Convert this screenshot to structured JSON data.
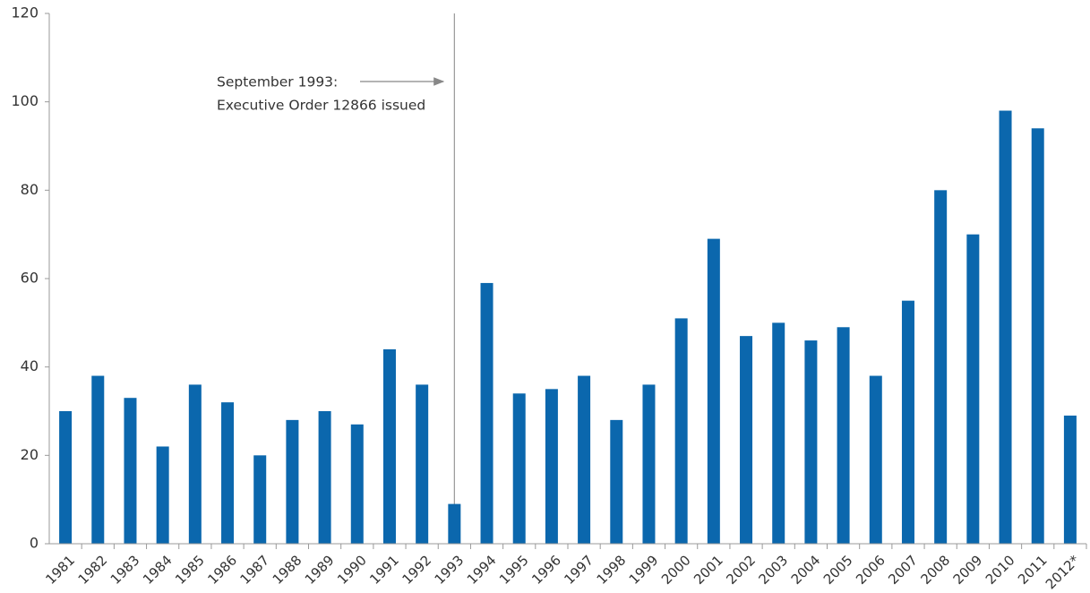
{
  "chart_data": {
    "type": "bar",
    "annotation": [
      "September 1993:",
      "Executive Order 12866 issued"
    ],
    "categories": [
      "1981",
      "1982",
      "1983",
      "1984",
      "1985",
      "1986",
      "1987",
      "1988",
      "1989",
      "1990",
      "1991",
      "1992",
      "1993",
      "1994",
      "1995",
      "1996",
      "1997",
      "1998",
      "1999",
      "2000",
      "2001",
      "2002",
      "2003",
      "2004",
      "2005",
      "2006",
      "2007",
      "2008",
      "2009",
      "2010",
      "2011",
      "2012*"
    ],
    "values": [
      30,
      38,
      33,
      22,
      36,
      32,
      20,
      28,
      30,
      27,
      44,
      36,
      9,
      59,
      34,
      35,
      38,
      28,
      36,
      51,
      69,
      47,
      50,
      46,
      49,
      38,
      55,
      80,
      70,
      98,
      94,
      29
    ],
    "color": "#0b67ad",
    "ylim": [
      0,
      120
    ],
    "yticks": [
      0,
      20,
      40,
      60,
      80,
      100,
      120
    ],
    "grid": false
  }
}
